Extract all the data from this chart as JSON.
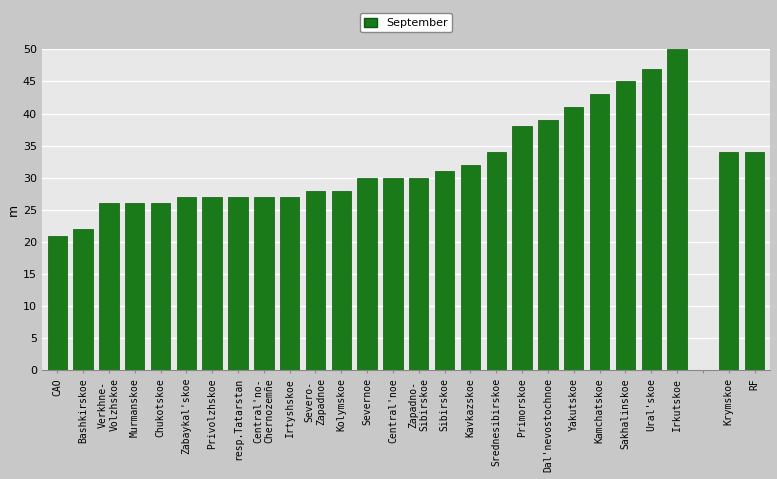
{
  "categories": [
    "CAO",
    "Bashkirskoe",
    "Verkhne-\nVolzhskoe",
    "Murmanskoe",
    "Chukotskoe",
    "Zabaykal'skoe",
    "Privolzhskoe",
    "resp.Tatarstan",
    "Central'no-\nChernozemñe",
    "Irtyshskoe",
    "Severo-\nZapadnoe",
    "Kolymskoe",
    "Severnoe",
    "Central'noe",
    "Zapadno-\nSibirskoe",
    "Sibirskoe",
    "Kavkazskoe",
    "Srednesibirskoe",
    "Primorskoe",
    "Dal'nevostochnoe",
    "Yakutskoe",
    "Kamchatskoe",
    "Sakhalinskoe",
    "Ural'skoe",
    "Irkutskoe",
    "",
    "Krymskoe",
    "RF"
  ],
  "values": [
    21,
    22,
    26,
    26,
    26,
    27,
    27,
    27,
    27,
    27,
    28,
    28,
    30,
    30,
    30,
    31,
    32,
    34,
    38,
    39,
    41,
    43,
    45,
    47,
    50,
    0,
    34,
    34
  ],
  "bar_color": "#1a7a1a",
  "bar_edge_color": "#0a5a0a",
  "fig_background": "#c8c8c8",
  "ax_background": "#e8e8e8",
  "title": "September",
  "ylabel": "m",
  "ylim": [
    0,
    50
  ],
  "yticks": [
    0,
    5,
    10,
    15,
    20,
    25,
    30,
    35,
    40,
    45,
    50
  ],
  "grid_color": "#ffffff",
  "legend_label": "September"
}
